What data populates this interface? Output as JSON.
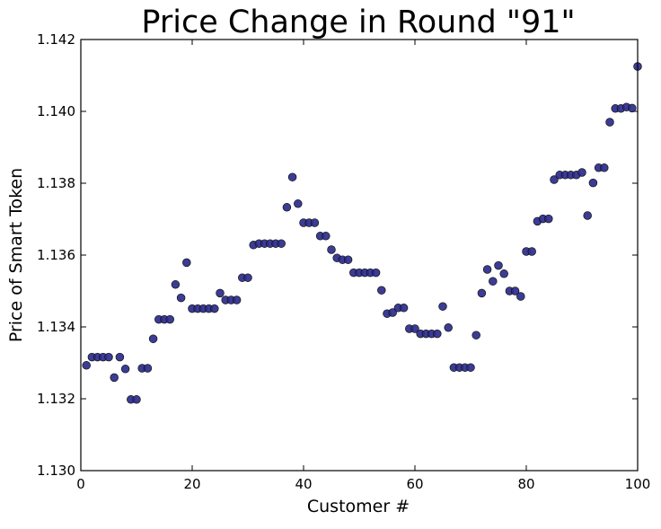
{
  "chart_data": {
    "type": "scatter",
    "title": "Price Change in Round \"91\"",
    "xlabel": "Customer #",
    "ylabel": "Price of Smart Token",
    "xlim": [
      0,
      100
    ],
    "ylim": [
      1.13,
      1.142
    ],
    "xticks": [
      0,
      20,
      40,
      60,
      80,
      100
    ],
    "xtick_labels": [
      "0",
      "20",
      "40",
      "60",
      "80",
      "100"
    ],
    "yticks": [
      1.13,
      1.132,
      1.134,
      1.136,
      1.138,
      1.14,
      1.142
    ],
    "ytick_labels": [
      "1.130",
      "1.132",
      "1.134",
      "1.136",
      "1.138",
      "1.140",
      "1.142"
    ],
    "grid": false,
    "marker_color": "#2b2b8c",
    "series": [
      {
        "x": [
          1,
          2,
          3,
          4,
          5,
          6,
          7,
          8,
          9,
          10,
          11,
          12,
          13,
          14,
          15,
          16,
          17,
          18,
          19,
          20,
          21,
          22,
          23,
          24,
          25,
          26,
          27,
          28,
          29,
          30,
          31,
          32,
          33,
          34,
          35,
          36,
          37,
          38,
          39,
          40,
          41,
          42,
          43,
          44,
          45,
          46,
          47,
          48,
          49,
          50,
          51,
          52,
          53,
          54,
          55,
          56,
          57,
          58,
          59,
          60,
          61,
          62,
          63,
          64,
          65,
          66,
          67,
          68,
          69,
          70,
          71,
          72,
          73,
          74,
          75,
          76,
          77,
          78,
          79,
          80,
          81,
          82,
          83,
          84,
          85,
          86,
          87,
          88,
          89,
          90,
          91,
          92,
          93,
          94,
          95,
          96,
          97,
          98,
          99,
          100
        ],
        "y": [
          1.13293,
          1.13316,
          1.13316,
          1.13316,
          1.13316,
          1.13259,
          1.13316,
          1.13283,
          1.13198,
          1.13198,
          1.13285,
          1.13285,
          1.13367,
          1.13421,
          1.13421,
          1.13421,
          1.13518,
          1.13481,
          1.13579,
          1.13451,
          1.13451,
          1.13451,
          1.13451,
          1.13451,
          1.13494,
          1.13475,
          1.13475,
          1.13475,
          1.13537,
          1.13537,
          1.13628,
          1.13632,
          1.13632,
          1.13632,
          1.13632,
          1.13632,
          1.13733,
          1.13817,
          1.13743,
          1.1369,
          1.1369,
          1.1369,
          1.13653,
          1.13653,
          1.13615,
          1.13592,
          1.13587,
          1.13587,
          1.13551,
          1.13551,
          1.13551,
          1.13551,
          1.13551,
          1.13502,
          1.13437,
          1.1344,
          1.13453,
          1.13453,
          1.13395,
          1.13395,
          1.13381,
          1.13381,
          1.13381,
          1.13381,
          1.13457,
          1.13398,
          1.13287,
          1.13287,
          1.13287,
          1.13287,
          1.13377,
          1.13494,
          1.1356,
          1.13527,
          1.13571,
          1.13548,
          1.135,
          1.135,
          1.13485,
          1.1361,
          1.1361,
          1.13694,
          1.13701,
          1.13701,
          1.1381,
          1.13823,
          1.13823,
          1.13823,
          1.13823,
          1.1383,
          1.1371,
          1.13801,
          1.13843,
          1.13843,
          1.1397,
          1.14008,
          1.14008,
          1.14012,
          1.14009,
          1.14125
        ]
      }
    ]
  }
}
